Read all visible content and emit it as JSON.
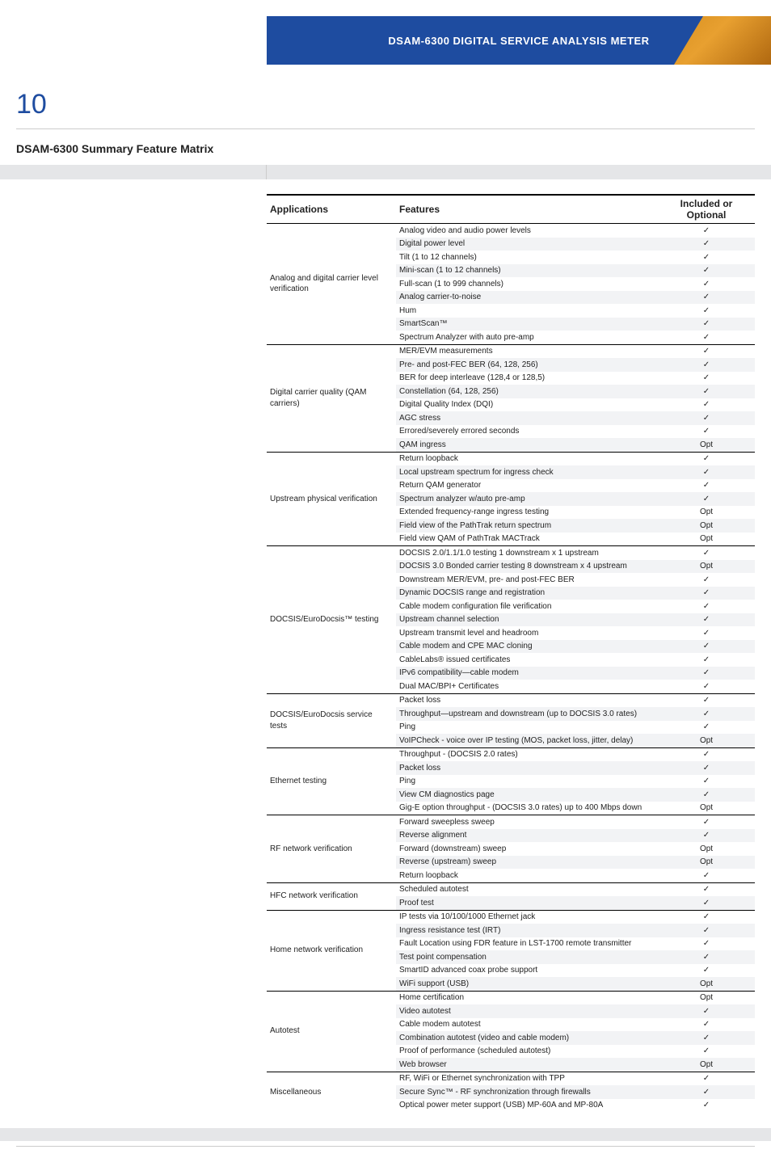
{
  "header": {
    "product": "DSAM-6300 DIGITAL SERVICE ANALYSIS METER"
  },
  "page_number": "10",
  "section_title": "DSAM-6300 Summary Feature Matrix",
  "columns": {
    "app": "Applications",
    "feat": "Features",
    "inc": "Included or Optional"
  },
  "check": "✓",
  "opt": "Opt",
  "groups": [
    {
      "app": "Analog and digital carrier level verification",
      "rows": [
        {
          "f": "Analog video and audio power levels",
          "v": "✓"
        },
        {
          "f": "Digital power level",
          "v": "✓"
        },
        {
          "f": "Tilt (1 to 12 channels)",
          "v": "✓"
        },
        {
          "f": "Mini-scan (1 to 12 channels)",
          "v": "✓"
        },
        {
          "f": "Full-scan (1 to 999 channels)",
          "v": "✓"
        },
        {
          "f": "Analog carrier-to-noise",
          "v": "✓"
        },
        {
          "f": "Hum",
          "v": "✓"
        },
        {
          "f": "SmartScan™",
          "v": "✓"
        },
        {
          "f": "Spectrum Analyzer with auto pre-amp",
          "v": "✓"
        }
      ]
    },
    {
      "app": "Digital carrier quality (QAM carriers)",
      "rows": [
        {
          "f": "MER/EVM measurements",
          "v": "✓"
        },
        {
          "f": "Pre- and post-FEC BER (64, 128, 256)",
          "v": "✓"
        },
        {
          "f": "BER for deep interleave (128,4 or 128,5)",
          "v": "✓"
        },
        {
          "f": "Constellation (64, 128, 256)",
          "v": "✓"
        },
        {
          "f": "Digital Quality Index (DQI)",
          "v": "✓"
        },
        {
          "f": "AGC stress",
          "v": "✓"
        },
        {
          "f": "Errored/severely errored seconds",
          "v": "✓"
        },
        {
          "f": "QAM ingress",
          "v": "Opt"
        }
      ]
    },
    {
      "app": "Upstream physical verification",
      "rows": [
        {
          "f": "Return loopback",
          "v": "✓"
        },
        {
          "f": "Local upstream spectrum for ingress check",
          "v": "✓"
        },
        {
          "f": "Return QAM generator",
          "v": "✓"
        },
        {
          "f": "Spectrum analyzer w/auto pre-amp",
          "v": "✓"
        },
        {
          "f": "Extended frequency-range ingress testing",
          "v": "Opt"
        },
        {
          "f": "Field view of the PathTrak return spectrum",
          "v": "Opt"
        },
        {
          "f": "Field view QAM of PathTrak MACTrack",
          "v": "Opt"
        }
      ]
    },
    {
      "app": "DOCSIS/EuroDocsis™ testing",
      "rows": [
        {
          "f": "DOCSIS 2.0/1.1/1.0 testing 1 downstream x 1 upstream",
          "v": "✓"
        },
        {
          "f": "DOCSIS 3.0 Bonded carrier testing 8 downstream x 4 upstream",
          "v": "Opt"
        },
        {
          "f": "Downstream MER/EVM, pre- and post-FEC BER",
          "v": "✓"
        },
        {
          "f": "Dynamic DOCSIS range and registration",
          "v": "✓"
        },
        {
          "f": "Cable modem configuration file verification",
          "v": "✓"
        },
        {
          "f": "Upstream channel selection",
          "v": "✓"
        },
        {
          "f": "Upstream transmit level and headroom",
          "v": "✓"
        },
        {
          "f": "Cable modem and CPE MAC cloning",
          "v": "✓"
        },
        {
          "f": "CableLabs® issued certificates",
          "v": "✓"
        },
        {
          "f": "IPv6 compatibility—cable modem",
          "v": "✓"
        },
        {
          "f": "Dual MAC/BPI+ Certificates",
          "v": "✓"
        }
      ]
    },
    {
      "app": "DOCSIS/EuroDocsis service tests",
      "rows": [
        {
          "f": "Packet loss",
          "v": "✓"
        },
        {
          "f": "Throughput—upstream and downstream (up to DOCSIS 3.0 rates)",
          "v": "✓"
        },
        {
          "f": "Ping",
          "v": "✓"
        },
        {
          "f": "VoIPCheck - voice over IP testing (MOS, packet loss, jitter, delay)",
          "v": "Opt"
        }
      ]
    },
    {
      "app": "Ethernet testing",
      "rows": [
        {
          "f": "Throughput - (DOCSIS 2.0 rates)",
          "v": "✓"
        },
        {
          "f": "Packet loss",
          "v": "✓"
        },
        {
          "f": "Ping",
          "v": "✓"
        },
        {
          "f": "View CM diagnostics page",
          "v": "✓"
        },
        {
          "f": "Gig-E option throughput - (DOCSIS 3.0 rates) up to 400 Mbps down",
          "v": "Opt"
        }
      ]
    },
    {
      "app": "RF network verification",
      "rows": [
        {
          "f": "Forward sweepless sweep",
          "v": "✓"
        },
        {
          "f": "Reverse alignment",
          "v": "✓"
        },
        {
          "f": "Forward (downstream) sweep",
          "v": "Opt"
        },
        {
          "f": "Reverse (upstream) sweep",
          "v": "Opt"
        },
        {
          "f": "Return loopback",
          "v": "✓"
        }
      ]
    },
    {
      "app": "HFC network verification",
      "rows": [
        {
          "f": "Scheduled autotest",
          "v": "✓"
        },
        {
          "f": "Proof test",
          "v": "✓"
        }
      ]
    },
    {
      "app": "Home network verification",
      "rows": [
        {
          "f": "IP tests via 10/100/1000 Ethernet jack",
          "v": "✓"
        },
        {
          "f": "Ingress resistance test (IRT)",
          "v": "✓"
        },
        {
          "f": "Fault Location using FDR feature in LST-1700 remote transmitter",
          "v": "✓"
        },
        {
          "f": "Test point compensation",
          "v": "✓"
        },
        {
          "f": "SmartID advanced coax probe support",
          "v": "✓"
        },
        {
          "f": "WiFi support (USB)",
          "v": "Opt"
        }
      ]
    },
    {
      "app": "Autotest",
      "rows": [
        {
          "f": "Home certification",
          "v": "Opt"
        },
        {
          "f": "Video autotest",
          "v": "✓"
        },
        {
          "f": "Cable modem autotest",
          "v": "✓"
        },
        {
          "f": "Combination autotest (video and cable modem)",
          "v": "✓"
        },
        {
          "f": "Proof of performance (scheduled autotest)",
          "v": "✓"
        },
        {
          "f": "Web browser",
          "v": "Opt"
        }
      ]
    },
    {
      "app": "Miscellaneous",
      "rows": [
        {
          "f": "RF, WiFi or Ethernet synchronization with TPP",
          "v": "✓"
        },
        {
          "f": "Secure Sync™ - RF synchronization through firewalls",
          "v": "✓"
        },
        {
          "f": "Optical power meter support (USB) MP-60A and MP-80A",
          "v": "✓"
        }
      ]
    }
  ]
}
